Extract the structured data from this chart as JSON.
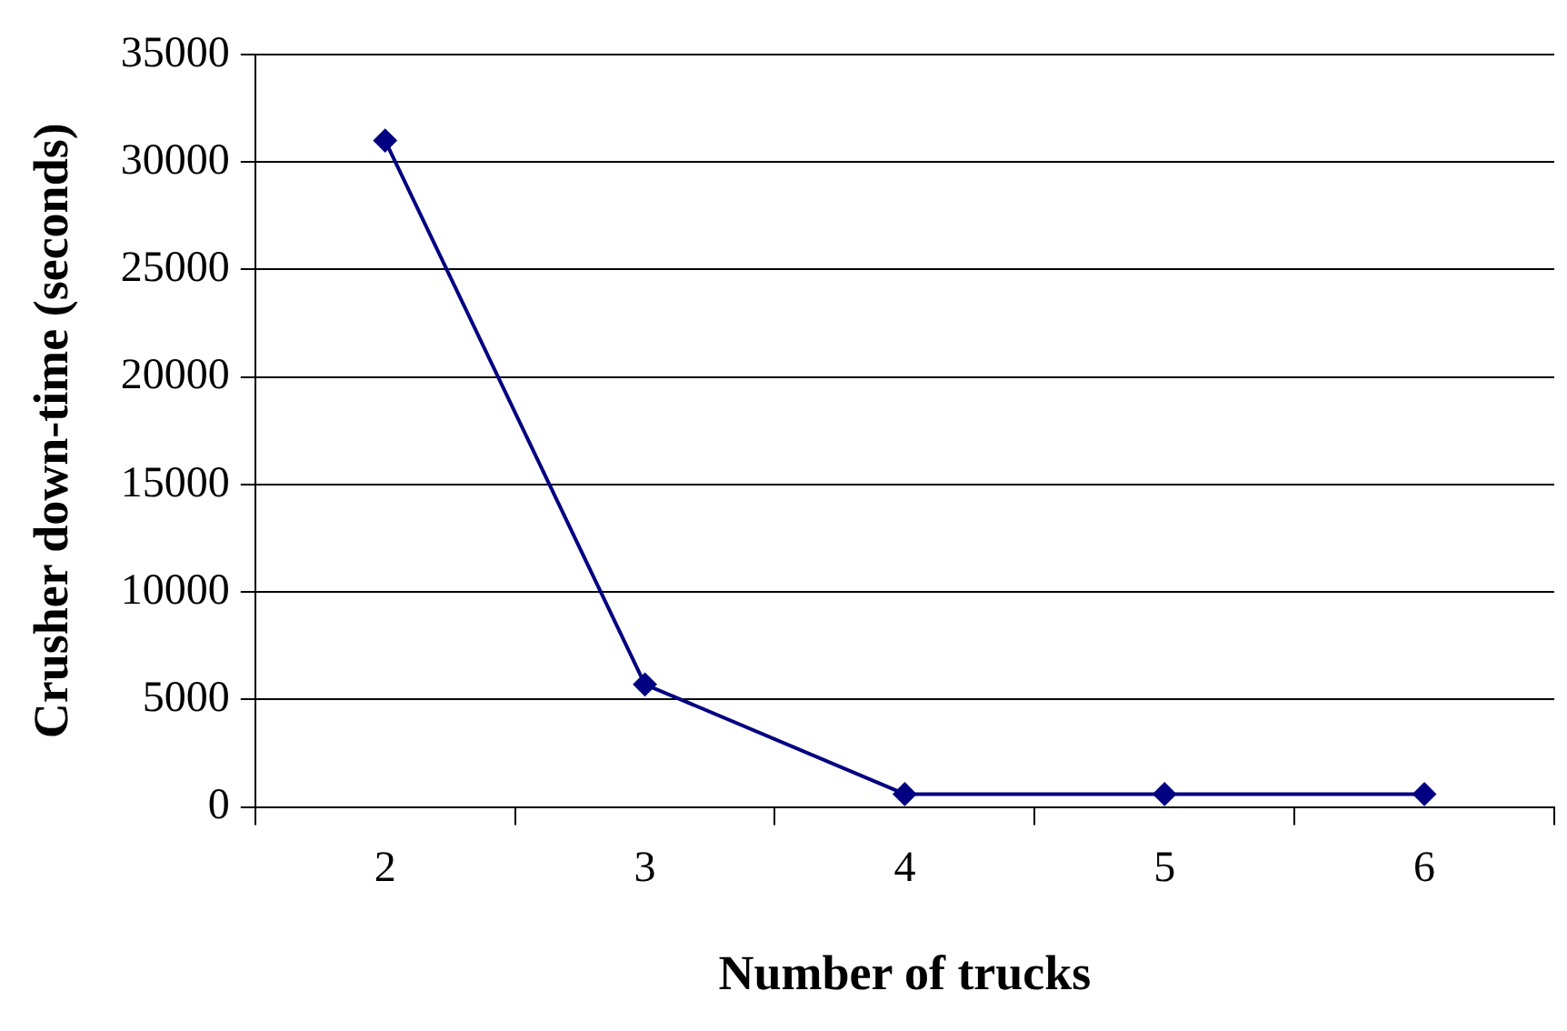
{
  "chart_data": {
    "type": "line",
    "xlabel": "Number of trucks",
    "ylabel": "Crusher down-time (seconds)",
    "categories": [
      "2",
      "3",
      "4",
      "5",
      "6"
    ],
    "series": [
      {
        "color": "#000080",
        "values": [
          31000,
          5700,
          600,
          600,
          600
        ]
      }
    ],
    "ylim": [
      0,
      35000
    ],
    "yticks": [
      0,
      5000,
      10000,
      15000,
      20000,
      25000,
      30000,
      35000
    ],
    "grid": "y",
    "legend": false,
    "marker": "diamond",
    "line_style": "solid"
  }
}
